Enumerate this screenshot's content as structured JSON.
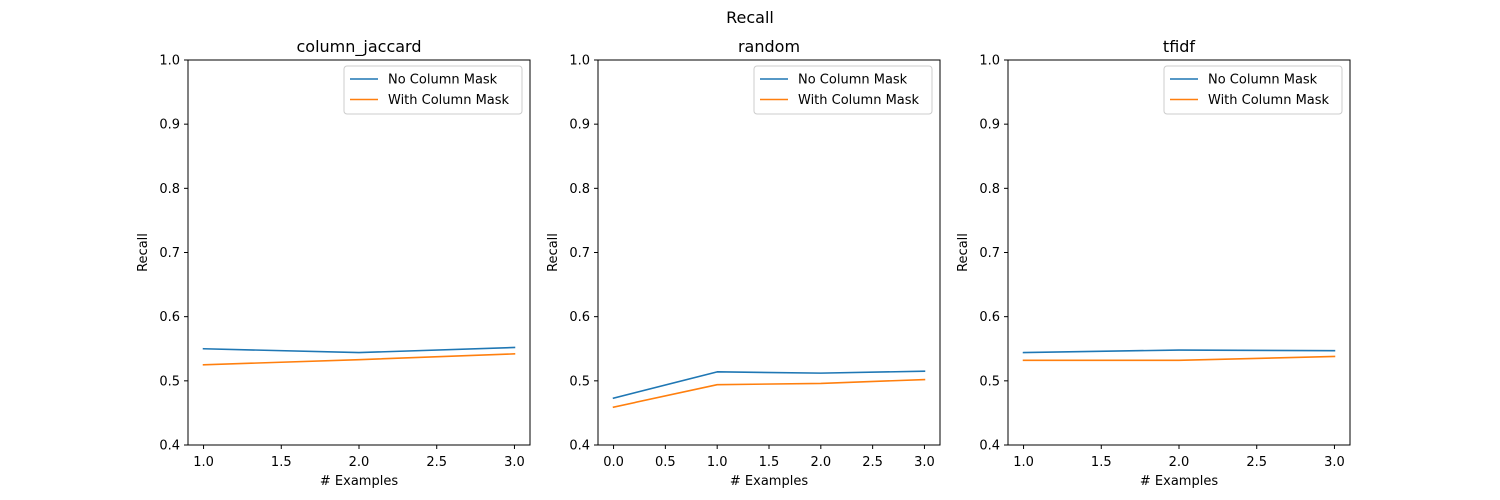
{
  "figure_title": "Recall",
  "colors": {
    "no_mask": "#1f77b4",
    "with_mask": "#ff7f0e"
  },
  "chart_data": [
    {
      "type": "line",
      "title": "column_jaccard",
      "xlabel": "# Examples",
      "ylabel": "Recall",
      "xlim": [
        0.9,
        3.1
      ],
      "ylim": [
        0.4,
        1.0
      ],
      "xticks": [
        1.0,
        1.5,
        2.0,
        2.5,
        3.0
      ],
      "xtick_labels": [
        "1.0",
        "1.5",
        "2.0",
        "2.5",
        "3.0"
      ],
      "yticks": [
        0.4,
        0.5,
        0.6,
        0.7,
        0.8,
        0.9,
        1.0
      ],
      "ytick_labels": [
        "0.4",
        "0.5",
        "0.6",
        "0.7",
        "0.8",
        "0.9",
        "1.0"
      ],
      "legend_position": "top-right",
      "x": [
        1,
        2,
        3
      ],
      "series": [
        {
          "name": "No Column Mask",
          "values": [
            0.55,
            0.544,
            0.552
          ]
        },
        {
          "name": "With Column Mask",
          "values": [
            0.525,
            0.533,
            0.542
          ]
        }
      ]
    },
    {
      "type": "line",
      "title": "random",
      "xlabel": "# Examples",
      "ylabel": "Recall",
      "xlim": [
        -0.15,
        3.15
      ],
      "ylim": [
        0.4,
        1.0
      ],
      "xticks": [
        0.0,
        0.5,
        1.0,
        1.5,
        2.0,
        2.5,
        3.0
      ],
      "xtick_labels": [
        "0.0",
        "0.5",
        "1.0",
        "1.5",
        "2.0",
        "2.5",
        "3.0"
      ],
      "yticks": [
        0.4,
        0.5,
        0.6,
        0.7,
        0.8,
        0.9,
        1.0
      ],
      "ytick_labels": [
        "0.4",
        "0.5",
        "0.6",
        "0.7",
        "0.8",
        "0.9",
        "1.0"
      ],
      "legend_position": "top-right",
      "x": [
        0,
        1,
        2,
        3
      ],
      "series": [
        {
          "name": "No Column Mask",
          "values": [
            0.473,
            0.514,
            0.512,
            0.515
          ]
        },
        {
          "name": "With Column Mask",
          "values": [
            0.459,
            0.494,
            0.496,
            0.502
          ]
        }
      ]
    },
    {
      "type": "line",
      "title": "tfidf",
      "xlabel": "# Examples",
      "ylabel": "Recall",
      "xlim": [
        0.9,
        3.1
      ],
      "ylim": [
        0.4,
        1.0
      ],
      "xticks": [
        1.0,
        1.5,
        2.0,
        2.5,
        3.0
      ],
      "xtick_labels": [
        "1.0",
        "1.5",
        "2.0",
        "2.5",
        "3.0"
      ],
      "yticks": [
        0.4,
        0.5,
        0.6,
        0.7,
        0.8,
        0.9,
        1.0
      ],
      "ytick_labels": [
        "0.4",
        "0.5",
        "0.6",
        "0.7",
        "0.8",
        "0.9",
        "1.0"
      ],
      "legend_position": "top-right",
      "x": [
        1,
        2,
        3
      ],
      "series": [
        {
          "name": "No Column Mask",
          "values": [
            0.544,
            0.548,
            0.547
          ]
        },
        {
          "name": "With Column Mask",
          "values": [
            0.532,
            0.532,
            0.538
          ]
        }
      ]
    }
  ]
}
